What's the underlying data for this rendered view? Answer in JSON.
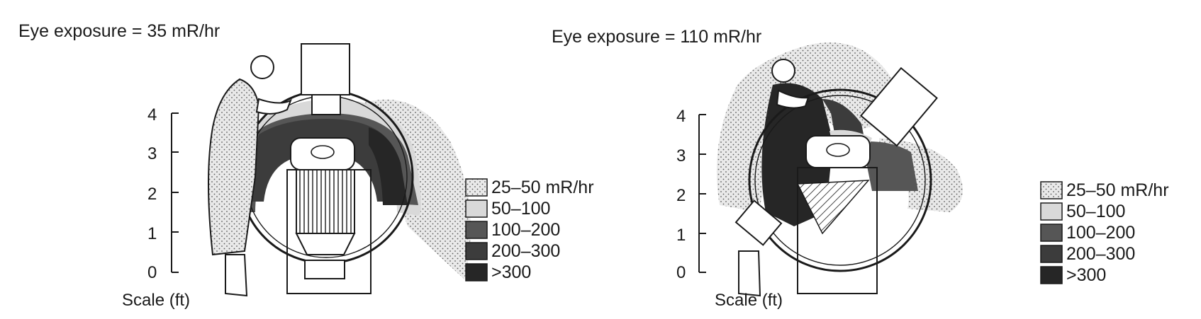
{
  "colors": {
    "very_dark": "#262626",
    "dark": "#3c3c3c",
    "medium": "#565656",
    "light": "#d9d9d9",
    "stipple_bg": "#e9e9e9",
    "stipple_dot": "#5a5a5a",
    "line": "#1a1a1a",
    "paper": "#ffffff"
  },
  "panels": [
    {
      "title": "Eye exposure = 35 mR/hr",
      "scale_label": "Scale (ft)",
      "ticks": [
        "4",
        "3",
        "2",
        "1",
        "0"
      ],
      "tube_position": "vertical-over-table",
      "legend": [
        {
          "label": "25–50 mR/hr",
          "swatch": "stipple"
        },
        {
          "label": "50–100",
          "swatch": "light"
        },
        {
          "label": "100–200",
          "swatch": "medium"
        },
        {
          "label": "200–300",
          "swatch": "dark"
        },
        {
          "label": ">300",
          "swatch": "very_dark"
        }
      ]
    },
    {
      "title": "Eye exposure = 110 mR/hr",
      "scale_label": "Scale (ft)",
      "ticks": [
        "4",
        "3",
        "2",
        "1",
        "0"
      ],
      "tube_position": "angled-oblique",
      "legend": [
        {
          "label": "25–50 mR/hr",
          "swatch": "stipple"
        },
        {
          "label": "50–100",
          "swatch": "light"
        },
        {
          "label": "100–200",
          "swatch": "medium"
        },
        {
          "label": "200–300",
          "swatch": "dark"
        },
        {
          "label": ">300",
          "swatch": "very_dark"
        }
      ]
    }
  ]
}
